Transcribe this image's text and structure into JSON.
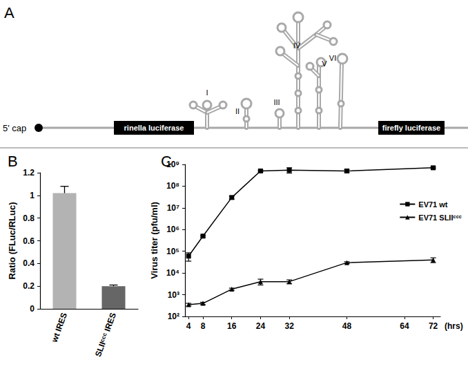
{
  "diagram": {
    "panel": "A",
    "cap": "5' cap",
    "genes": [
      "rinella luciferase",
      "firefly luciferase"
    ],
    "stem_loops": [
      "I",
      "II",
      "III",
      "IV",
      "V",
      "VI"
    ]
  },
  "chart_data": [
    {
      "type": "bar",
      "title": "B",
      "categories": [
        "wt IRES",
        "SLIIᶜᶜᶜ IRES"
      ],
      "values": [
        1.02,
        0.2
      ],
      "errors": [
        0.06,
        0.01
      ],
      "colors": [
        "#b3b3b3",
        "#666666"
      ],
      "y_label": "Ratio (FLuc/RLuc)",
      "ylim": [
        0,
        1.2
      ],
      "yticks": [
        0,
        0.2,
        0.4,
        0.6,
        0.8,
        1,
        1.2
      ],
      "grid": false
    },
    {
      "type": "line",
      "title": "C",
      "x_label": "(hrs)",
      "y_label": "Virus titer (pfu/ml)",
      "log": "y",
      "grid": false,
      "legend": "top-right",
      "x": [
        4,
        8,
        16,
        24,
        32,
        48,
        72
      ],
      "xlim": [
        3,
        74
      ],
      "xticks": [
        4,
        8,
        16,
        24,
        32,
        48,
        64,
        72
      ],
      "ylim": [
        100,
        1000000000
      ],
      "yticks": [
        {
          "value": 100,
          "label": "10²"
        },
        {
          "value": 1000,
          "label": "10³"
        },
        {
          "value": 10000,
          "label": "10⁴"
        },
        {
          "value": 100000,
          "label": "10⁵"
        },
        {
          "value": 1000000,
          "label": "10⁶"
        },
        {
          "value": 10000000,
          "label": "10⁷"
        },
        {
          "value": 100000000,
          "label": "10⁸"
        },
        {
          "value": 1000000000,
          "label": "10⁹"
        }
      ],
      "series": [
        {
          "name": "EV71 wt",
          "color": "#000000",
          "marker": "square",
          "line_style": "solid",
          "values": [
            60000,
            500000,
            30000000,
            500000000,
            550000000,
            500000000,
            700000000
          ],
          "errors": [
            25000,
            50000,
            5000000,
            50000000,
            150000000,
            80000000,
            60000000
          ]
        },
        {
          "name": "EV71 SLIIᶜᶜᶜ",
          "color": "#000000",
          "marker": "triangle",
          "line_style": "solid",
          "values": [
            350,
            400,
            1800,
            4000,
            4000,
            30000,
            40000
          ],
          "errors": [
            50,
            50,
            200,
            1200,
            800,
            3000,
            10000
          ]
        }
      ]
    }
  ]
}
